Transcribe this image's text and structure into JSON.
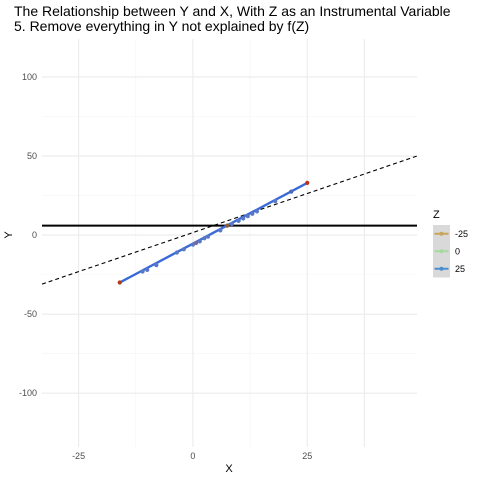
{
  "chart_data": {
    "type": "scatter",
    "title": "The Relationship between Y and X, With Z as an Instrumental Variable",
    "subtitle": "5. Remove everything in Y not explained by f(Z)",
    "xlabel": "X",
    "ylabel": "Y",
    "xlim": [
      -33,
      49
    ],
    "ylim": [
      -134,
      124
    ],
    "x_ticks": [
      -25,
      0,
      25
    ],
    "y_ticks": [
      -100,
      -50,
      0,
      50,
      100
    ],
    "grid": true,
    "legend": {
      "title": "Z",
      "placement": "right",
      "entries": [
        {
          "label": "-25",
          "color": "#c8a45a"
        },
        {
          "label": "0",
          "color": "#a8d8a0"
        },
        {
          "label": "25",
          "color": "#4a8fd0"
        }
      ]
    },
    "points": [
      {
        "x": -16,
        "y": -30,
        "color": "#b03a1a"
      },
      {
        "x": -11,
        "y": -23,
        "color": "#5a78c8"
      },
      {
        "x": -10,
        "y": -22,
        "color": "#5a78c8"
      },
      {
        "x": -8,
        "y": -19,
        "color": "#5a78c8"
      },
      {
        "x": -3.5,
        "y": -11,
        "color": "#5a78c8"
      },
      {
        "x": -2,
        "y": -9,
        "color": "#5a78c8"
      },
      {
        "x": 0,
        "y": -6,
        "color": "#5a78c8"
      },
      {
        "x": 0.7,
        "y": -5,
        "color": "#7a6a9a"
      },
      {
        "x": 1.5,
        "y": -4,
        "color": "#5a78c8"
      },
      {
        "x": 2.5,
        "y": -2,
        "color": "#5a78c8"
      },
      {
        "x": 3.3,
        "y": -1,
        "color": "#5a78c8"
      },
      {
        "x": 6,
        "y": 3,
        "color": "#5a78c8"
      },
      {
        "x": 7.5,
        "y": 6,
        "color": "#8a5a3a"
      },
      {
        "x": 8.5,
        "y": 7,
        "color": "#5a78c8"
      },
      {
        "x": 10,
        "y": 9,
        "color": "#5a78c8"
      },
      {
        "x": 11,
        "y": 10.5,
        "color": "#5a78c8"
      },
      {
        "x": 12,
        "y": 12,
        "color": "#5a78c8"
      },
      {
        "x": 13,
        "y": 13.5,
        "color": "#5a78c8"
      },
      {
        "x": 14,
        "y": 15,
        "color": "#5a78c8"
      },
      {
        "x": 18,
        "y": 21.5,
        "color": "#5a78c8"
      },
      {
        "x": 21.5,
        "y": 27.5,
        "color": "#4a6ab8"
      },
      {
        "x": 25,
        "y": 33,
        "color": "#c03020"
      }
    ],
    "fit_line": {
      "x": [
        -16,
        25
      ],
      "y": [
        -30,
        33
      ],
      "color": "#3a6ad8"
    },
    "dashed_line": {
      "x": [
        -33,
        49
      ],
      "y": [
        -31,
        50
      ],
      "color": "#000000"
    },
    "hline": {
      "y": 6,
      "color": "#000000"
    }
  }
}
